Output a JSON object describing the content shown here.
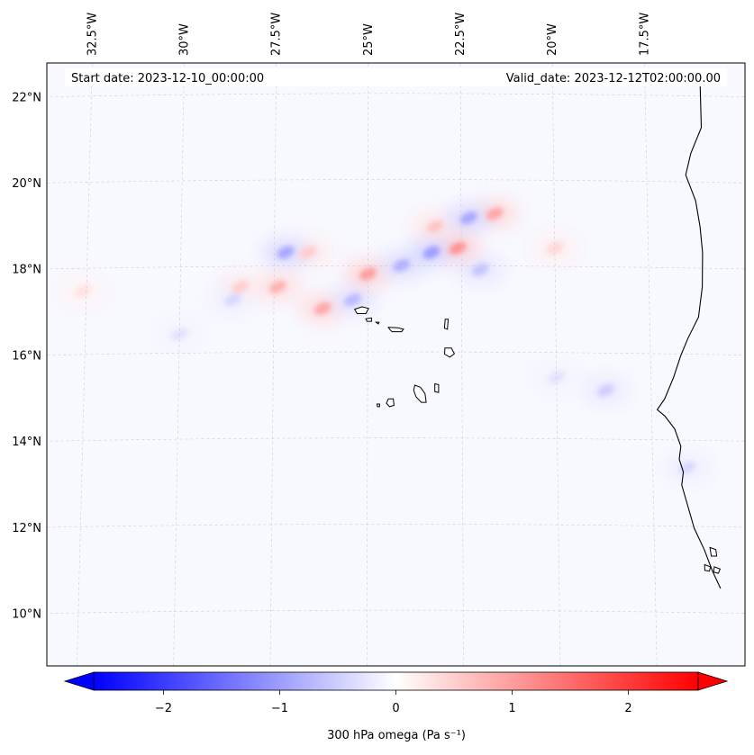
{
  "header": {
    "start_date": "Start date: 2023-12-10_00:00:00",
    "valid_date": "Valid_date: 2023-12-12T02:00:00.00"
  },
  "map": {
    "projection": "conic",
    "lon_range": [
      -33.5,
      -15.0
    ],
    "lat_range": [
      8.8,
      22.8
    ],
    "field": "300 hPa omega",
    "land_color": "#ffffff",
    "coastline_color": "#000000",
    "gridline_color": "#cccccc",
    "lon_ticks": [
      {
        "value": -32.5,
        "label": "32.5°W"
      },
      {
        "value": -30.0,
        "label": "30°W"
      },
      {
        "value": -27.5,
        "label": "27.5°W"
      },
      {
        "value": -25.0,
        "label": "25°W"
      },
      {
        "value": -22.5,
        "label": "22.5°W"
      },
      {
        "value": -20.0,
        "label": "20°W"
      },
      {
        "value": -17.5,
        "label": "17.5°W"
      }
    ],
    "lat_ticks": [
      {
        "value": 22,
        "label": "22°N"
      },
      {
        "value": 20,
        "label": "20°N"
      },
      {
        "value": 18,
        "label": "18°N"
      },
      {
        "value": 16,
        "label": "16°N"
      },
      {
        "value": 14,
        "label": "14°N"
      },
      {
        "value": 12,
        "label": "12°N"
      },
      {
        "value": 10,
        "label": "10°N"
      }
    ],
    "features": [
      {
        "type": "positive-omega",
        "lon": -26.2,
        "lat": 17.1,
        "value": 0.9
      },
      {
        "type": "positive-omega",
        "lon": -27.4,
        "lat": 17.6,
        "value": 0.8
      },
      {
        "type": "positive-omega",
        "lon": -25.0,
        "lat": 17.9,
        "value": 1.0
      },
      {
        "type": "positive-omega",
        "lon": -22.6,
        "lat": 18.5,
        "value": 1.1
      },
      {
        "type": "positive-omega",
        "lon": -21.6,
        "lat": 19.3,
        "value": 0.9
      },
      {
        "type": "positive-omega",
        "lon": -23.2,
        "lat": 19.0,
        "value": 0.6
      },
      {
        "type": "positive-omega",
        "lon": -26.6,
        "lat": 18.4,
        "value": 0.5
      },
      {
        "type": "positive-omega",
        "lon": -28.4,
        "lat": 17.6,
        "value": 0.5
      },
      {
        "type": "positive-omega",
        "lon": -32.6,
        "lat": 17.5,
        "value": 0.3
      },
      {
        "type": "positive-omega",
        "lon": -20.0,
        "lat": 18.5,
        "value": 0.4
      },
      {
        "type": "negative-omega",
        "lon": -27.2,
        "lat": 18.4,
        "value": -0.9
      },
      {
        "type": "negative-omega",
        "lon": -25.4,
        "lat": 17.3,
        "value": -0.7
      },
      {
        "type": "negative-omega",
        "lon": -24.1,
        "lat": 18.1,
        "value": -0.8
      },
      {
        "type": "negative-omega",
        "lon": -23.3,
        "lat": 18.4,
        "value": -1.0
      },
      {
        "type": "negative-omega",
        "lon": -22.3,
        "lat": 19.2,
        "value": -0.9
      },
      {
        "type": "negative-omega",
        "lon": -22.0,
        "lat": 18.0,
        "value": -0.6
      },
      {
        "type": "negative-omega",
        "lon": -28.6,
        "lat": 17.3,
        "value": -0.4
      },
      {
        "type": "negative-omega",
        "lon": -30.0,
        "lat": 16.5,
        "value": -0.3
      },
      {
        "type": "negative-omega",
        "lon": -18.7,
        "lat": 15.2,
        "value": -0.5
      },
      {
        "type": "negative-omega",
        "lon": -20.0,
        "lat": 15.5,
        "value": -0.3
      },
      {
        "type": "negative-omega",
        "lon": -16.6,
        "lat": 13.4,
        "value": -0.4
      }
    ],
    "islands": [
      {
        "name": "Santo Antão",
        "points": [
          [
            -25.35,
            17.08
          ],
          [
            -25.15,
            17.14
          ],
          [
            -24.98,
            17.1
          ],
          [
            -25.05,
            16.98
          ],
          [
            -25.28,
            16.98
          ]
        ]
      },
      {
        "name": "São Vicente",
        "points": [
          [
            -25.05,
            16.86
          ],
          [
            -24.9,
            16.88
          ],
          [
            -24.9,
            16.8
          ],
          [
            -25.02,
            16.8
          ]
        ]
      },
      {
        "name": "Santa Luzia",
        "points": [
          [
            -24.78,
            16.78
          ],
          [
            -24.7,
            16.78
          ],
          [
            -24.72,
            16.74
          ]
        ]
      },
      {
        "name": "São Nicolau",
        "points": [
          [
            -24.45,
            16.66
          ],
          [
            -24.2,
            16.65
          ],
          [
            -24.05,
            16.62
          ],
          [
            -24.1,
            16.56
          ],
          [
            -24.35,
            16.56
          ],
          [
            -24.4,
            16.6
          ]
        ]
      },
      {
        "name": "Sal",
        "points": [
          [
            -22.94,
            16.85
          ],
          [
            -22.86,
            16.85
          ],
          [
            -22.88,
            16.62
          ],
          [
            -22.96,
            16.64
          ]
        ]
      },
      {
        "name": "Boa Vista",
        "points": [
          [
            -22.95,
            16.18
          ],
          [
            -22.78,
            16.18
          ],
          [
            -22.7,
            16.05
          ],
          [
            -22.82,
            15.97
          ],
          [
            -22.96,
            16.04
          ]
        ]
      },
      {
        "name": "Maio",
        "points": [
          [
            -23.22,
            15.35
          ],
          [
            -23.12,
            15.33
          ],
          [
            -23.12,
            15.15
          ],
          [
            -23.22,
            15.17
          ]
        ]
      },
      {
        "name": "Santiago",
        "points": [
          [
            -23.75,
            15.32
          ],
          [
            -23.6,
            15.27
          ],
          [
            -23.48,
            15.12
          ],
          [
            -23.45,
            14.92
          ],
          [
            -23.58,
            14.92
          ],
          [
            -23.72,
            15.05
          ],
          [
            -23.78,
            15.2
          ]
        ]
      },
      {
        "name": "Fogo",
        "points": [
          [
            -24.45,
            15.0
          ],
          [
            -24.32,
            15.0
          ],
          [
            -24.3,
            14.85
          ],
          [
            -24.42,
            14.82
          ],
          [
            -24.5,
            14.9
          ]
        ]
      },
      {
        "name": "Brava",
        "points": [
          [
            -24.75,
            14.88
          ],
          [
            -24.68,
            14.88
          ],
          [
            -24.68,
            14.82
          ],
          [
            -24.74,
            14.82
          ]
        ]
      }
    ],
    "coast": [
      [
        -16.0,
        22.3
      ],
      [
        -16.0,
        21.3
      ],
      [
        -16.3,
        20.7
      ],
      [
        -16.45,
        20.2
      ],
      [
        -16.2,
        19.6
      ],
      [
        -16.1,
        19.0
      ],
      [
        -16.05,
        18.4
      ],
      [
        -16.08,
        17.6
      ],
      [
        -16.2,
        16.9
      ],
      [
        -16.5,
        16.4
      ],
      [
        -16.7,
        16.0
      ],
      [
        -16.9,
        15.5
      ],
      [
        -17.15,
        15.0
      ],
      [
        -17.35,
        14.75
      ],
      [
        -17.15,
        14.6
      ],
      [
        -16.9,
        14.3
      ],
      [
        -16.75,
        13.9
      ],
      [
        -16.8,
        13.6
      ],
      [
        -16.7,
        13.3
      ],
      [
        -16.75,
        13.0
      ],
      [
        -16.6,
        12.5
      ],
      [
        -16.45,
        12.0
      ],
      [
        -16.2,
        11.5
      ],
      [
        -16.0,
        11.0
      ],
      [
        -15.8,
        10.6
      ]
    ],
    "coast_islands": [
      {
        "points": [
          [
            -16.05,
            11.55
          ],
          [
            -15.9,
            11.5
          ],
          [
            -15.88,
            11.35
          ],
          [
            -16.02,
            11.35
          ]
        ]
      },
      {
        "points": [
          [
            -16.2,
            11.15
          ],
          [
            -16.05,
            11.1
          ],
          [
            -16.08,
            11.0
          ],
          [
            -16.2,
            11.02
          ]
        ]
      },
      {
        "points": [
          [
            -15.95,
            11.1
          ],
          [
            -15.8,
            11.05
          ],
          [
            -15.85,
            10.95
          ],
          [
            -15.97,
            10.98
          ]
        ]
      }
    ],
    "omega_scale_max": 2.6
  },
  "colorbar": {
    "label": "300 hPa omega (Pa s⁻¹)",
    "min": -2.6,
    "max": 2.6,
    "extend": "both",
    "ticks": [
      {
        "value": -2,
        "label": "−2"
      },
      {
        "value": -1,
        "label": "−1"
      },
      {
        "value": 0,
        "label": "0"
      },
      {
        "value": 1,
        "label": "1"
      },
      {
        "value": 2,
        "label": "2"
      }
    ],
    "negative_color": "#0000ff",
    "positive_color": "#ff0000",
    "center_color": "#ffffff"
  }
}
